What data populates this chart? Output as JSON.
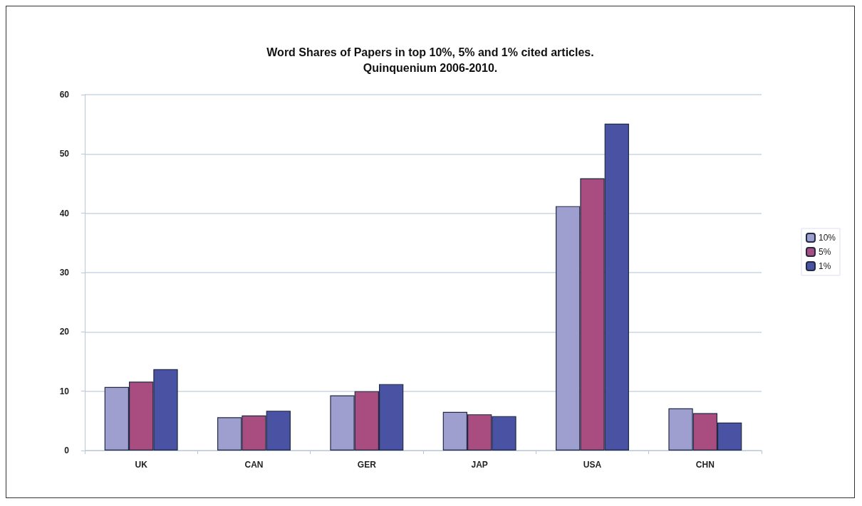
{
  "chart_data": {
    "type": "bar",
    "title": "Word Shares of Papers in top 10%, 5% and 1% cited articles.\nQuinquenium 2006-2010.",
    "categories": [
      "UK",
      "CAN",
      "GER",
      "JAP",
      "USA",
      "CHN"
    ],
    "series": [
      {
        "name": "10%",
        "color": "#9f9fcf",
        "values": [
          10.7,
          5.6,
          9.3,
          6.5,
          41.2,
          7.1
        ]
      },
      {
        "name": "5%",
        "color": "#a94d80",
        "values": [
          11.6,
          5.9,
          10.0,
          6.1,
          45.9,
          6.3
        ]
      },
      {
        "name": "1%",
        "color": "#4a52a3",
        "values": [
          13.7,
          6.7,
          11.2,
          5.8,
          55.1,
          4.7
        ]
      }
    ],
    "ylim": [
      0,
      60
    ],
    "yticks": [
      0,
      10,
      20,
      30,
      40,
      50,
      60
    ],
    "grid": "y",
    "legend": "right"
  }
}
